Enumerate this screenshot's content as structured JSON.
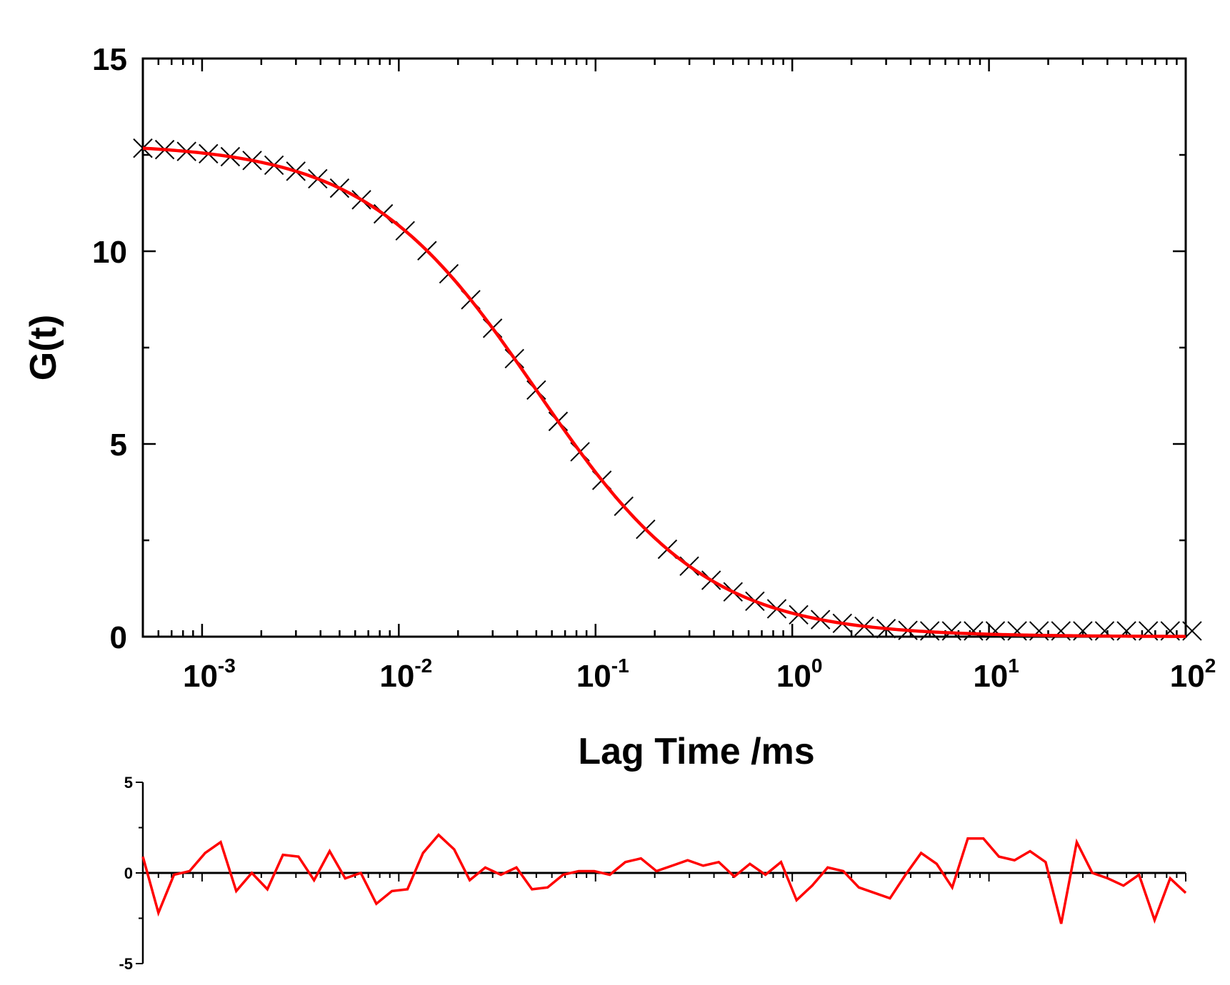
{
  "colors": {
    "fit": "#ff0000",
    "data": "#000000",
    "residual": "#ff0000",
    "axis": "#000000"
  },
  "chart_data": [
    {
      "type": "scatter",
      "title": "",
      "xlabel": "Lag Time /ms",
      "ylabel": "G(t)",
      "xscale": "log",
      "xlim": [
        0.0005,
        100
      ],
      "ylim": [
        0,
        15
      ],
      "x_tick_labels": [
        {
          "value": 0.001,
          "base": "10",
          "exp": "-3"
        },
        {
          "value": 0.01,
          "base": "10",
          "exp": "-2"
        },
        {
          "value": 0.1,
          "base": "10",
          "exp": "-1"
        },
        {
          "value": 1,
          "base": "10",
          "exp": "0"
        },
        {
          "value": 10,
          "base": "10",
          "exp": "1"
        },
        {
          "value": 100,
          "base": "10",
          "exp": "2"
        }
      ],
      "y_tick_labels": [
        {
          "value": 0,
          "label": "0"
        },
        {
          "value": 5,
          "label": "5"
        },
        {
          "value": 10,
          "label": "10"
        },
        {
          "value": 15,
          "label": "15"
        }
      ],
      "series": [
        {
          "name": "data",
          "marker": "x",
          "x_range": [
            0.0005,
            100
          ],
          "points_per_decade": 9,
          "y_plateau_low": 0.15,
          "fit_params": {
            "G0": 12.8,
            "tau_D_ms": 0.05,
            "offset": 0
          }
        },
        {
          "name": "fit",
          "style": "line",
          "G0": 12.8,
          "tau_D_ms": 0.05,
          "offset": 0
        }
      ]
    },
    {
      "type": "line",
      "title": "",
      "xlabel": "",
      "ylabel": "",
      "xscale": "log",
      "xlim": [
        0.0005,
        100
      ],
      "ylim": [
        -5,
        5
      ],
      "y_tick_labels": [
        {
          "value": 5,
          "label": "5"
        },
        {
          "value": 0,
          "label": "0"
        },
        {
          "value": -5,
          "label": "-5"
        }
      ],
      "series": [
        {
          "name": "residuals",
          "x_range": [
            0.0005,
            100
          ],
          "values": [
            0.9,
            -2.2,
            -0.1,
            0.1,
            1.1,
            1.7,
            -1.0,
            0.0,
            -0.9,
            1.0,
            0.9,
            -0.4,
            1.2,
            -0.3,
            0.0,
            -1.7,
            -1.0,
            -0.9,
            1.1,
            2.1,
            1.3,
            -0.4,
            0.3,
            -0.1,
            0.3,
            -0.9,
            -0.8,
            -0.1,
            0.1,
            0.1,
            -0.1,
            0.6,
            0.8,
            0.1,
            0.4,
            0.7,
            0.4,
            0.6,
            -0.2,
            0.5,
            -0.1,
            0.6,
            -1.5,
            -0.7,
            0.3,
            0.1,
            -0.8,
            -1.1,
            -1.4,
            -0.1,
            1.1,
            0.5,
            -0.8,
            1.9,
            1.9,
            0.9,
            0.7,
            1.2,
            0.6,
            -2.8,
            1.7,
            0.0,
            -0.3,
            -0.7,
            -0.1,
            -2.6,
            -0.3,
            -1.1
          ]
        }
      ]
    }
  ]
}
